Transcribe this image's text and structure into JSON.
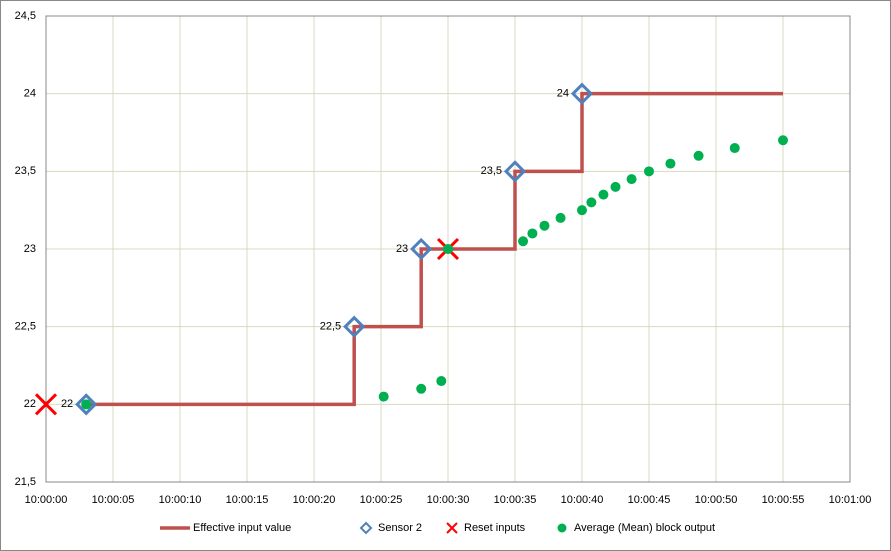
{
  "chart_data": {
    "type": "scatter",
    "xlim": [
      0,
      60
    ],
    "xticks": [
      {
        "value": 0,
        "label": "10:00:00"
      },
      {
        "value": 5,
        "label": "10:00:05"
      },
      {
        "value": 10,
        "label": "10:00:10"
      },
      {
        "value": 15,
        "label": "10:00:15"
      },
      {
        "value": 20,
        "label": "10:00:20"
      },
      {
        "value": 25,
        "label": "10:00:25"
      },
      {
        "value": 30,
        "label": "10:00:30"
      },
      {
        "value": 35,
        "label": "10:00:35"
      },
      {
        "value": 40,
        "label": "10:00:40"
      },
      {
        "value": 45,
        "label": "10:00:45"
      },
      {
        "value": 50,
        "label": "10:00:50"
      },
      {
        "value": 55,
        "label": "10:00:55"
      },
      {
        "value": 60,
        "label": "10:01:00"
      }
    ],
    "ylim": [
      21.5,
      24.5
    ],
    "yticks": [
      {
        "value": 21.5,
        "label": "21,5"
      },
      22,
      {
        "value": 22.5,
        "label": "22,5"
      },
      23,
      {
        "value": 23.5,
        "label": "23,5"
      },
      24,
      {
        "value": 24.5,
        "label": "24,5"
      }
    ],
    "grid": true,
    "legend": "bottom",
    "series": [
      {
        "name": "Effective input value",
        "color": "#c0504d",
        "marker": "line",
        "x": [
          3,
          23,
          23,
          28,
          28,
          35,
          35,
          40,
          40,
          55
        ],
        "values": [
          22,
          22,
          22.5,
          22.5,
          23,
          23,
          23.5,
          23.5,
          24,
          24
        ]
      },
      {
        "name": "Sensor 2",
        "color": "#4f81bd",
        "marker": "diamond",
        "x": [
          3,
          23,
          28,
          35,
          40
        ],
        "values": [
          22,
          22.5,
          23,
          23.5,
          24
        ],
        "value_labels": [
          "22",
          "22,5",
          "23",
          "23,5",
          "24"
        ]
      },
      {
        "name": "Reset inputs",
        "color": "#ff0000",
        "marker": "x",
        "x": [
          0,
          30
        ],
        "values": [
          22,
          23
        ]
      },
      {
        "name": "Average (Mean) block output",
        "color": "#00b050",
        "marker": "circle",
        "x": [
          3,
          25.2,
          28,
          29.5,
          30,
          35.6,
          36.3,
          37.2,
          38.4,
          40,
          40.7,
          41.6,
          42.5,
          43.7,
          45,
          46.6,
          48.7,
          51.4,
          55
        ],
        "values": [
          22,
          22.05,
          22.1,
          22.15,
          23,
          23.05,
          23.1,
          23.15,
          23.2,
          23.25,
          23.3,
          23.35,
          23.4,
          23.45,
          23.5,
          23.55,
          23.6,
          23.65,
          23.7
        ]
      }
    ]
  }
}
